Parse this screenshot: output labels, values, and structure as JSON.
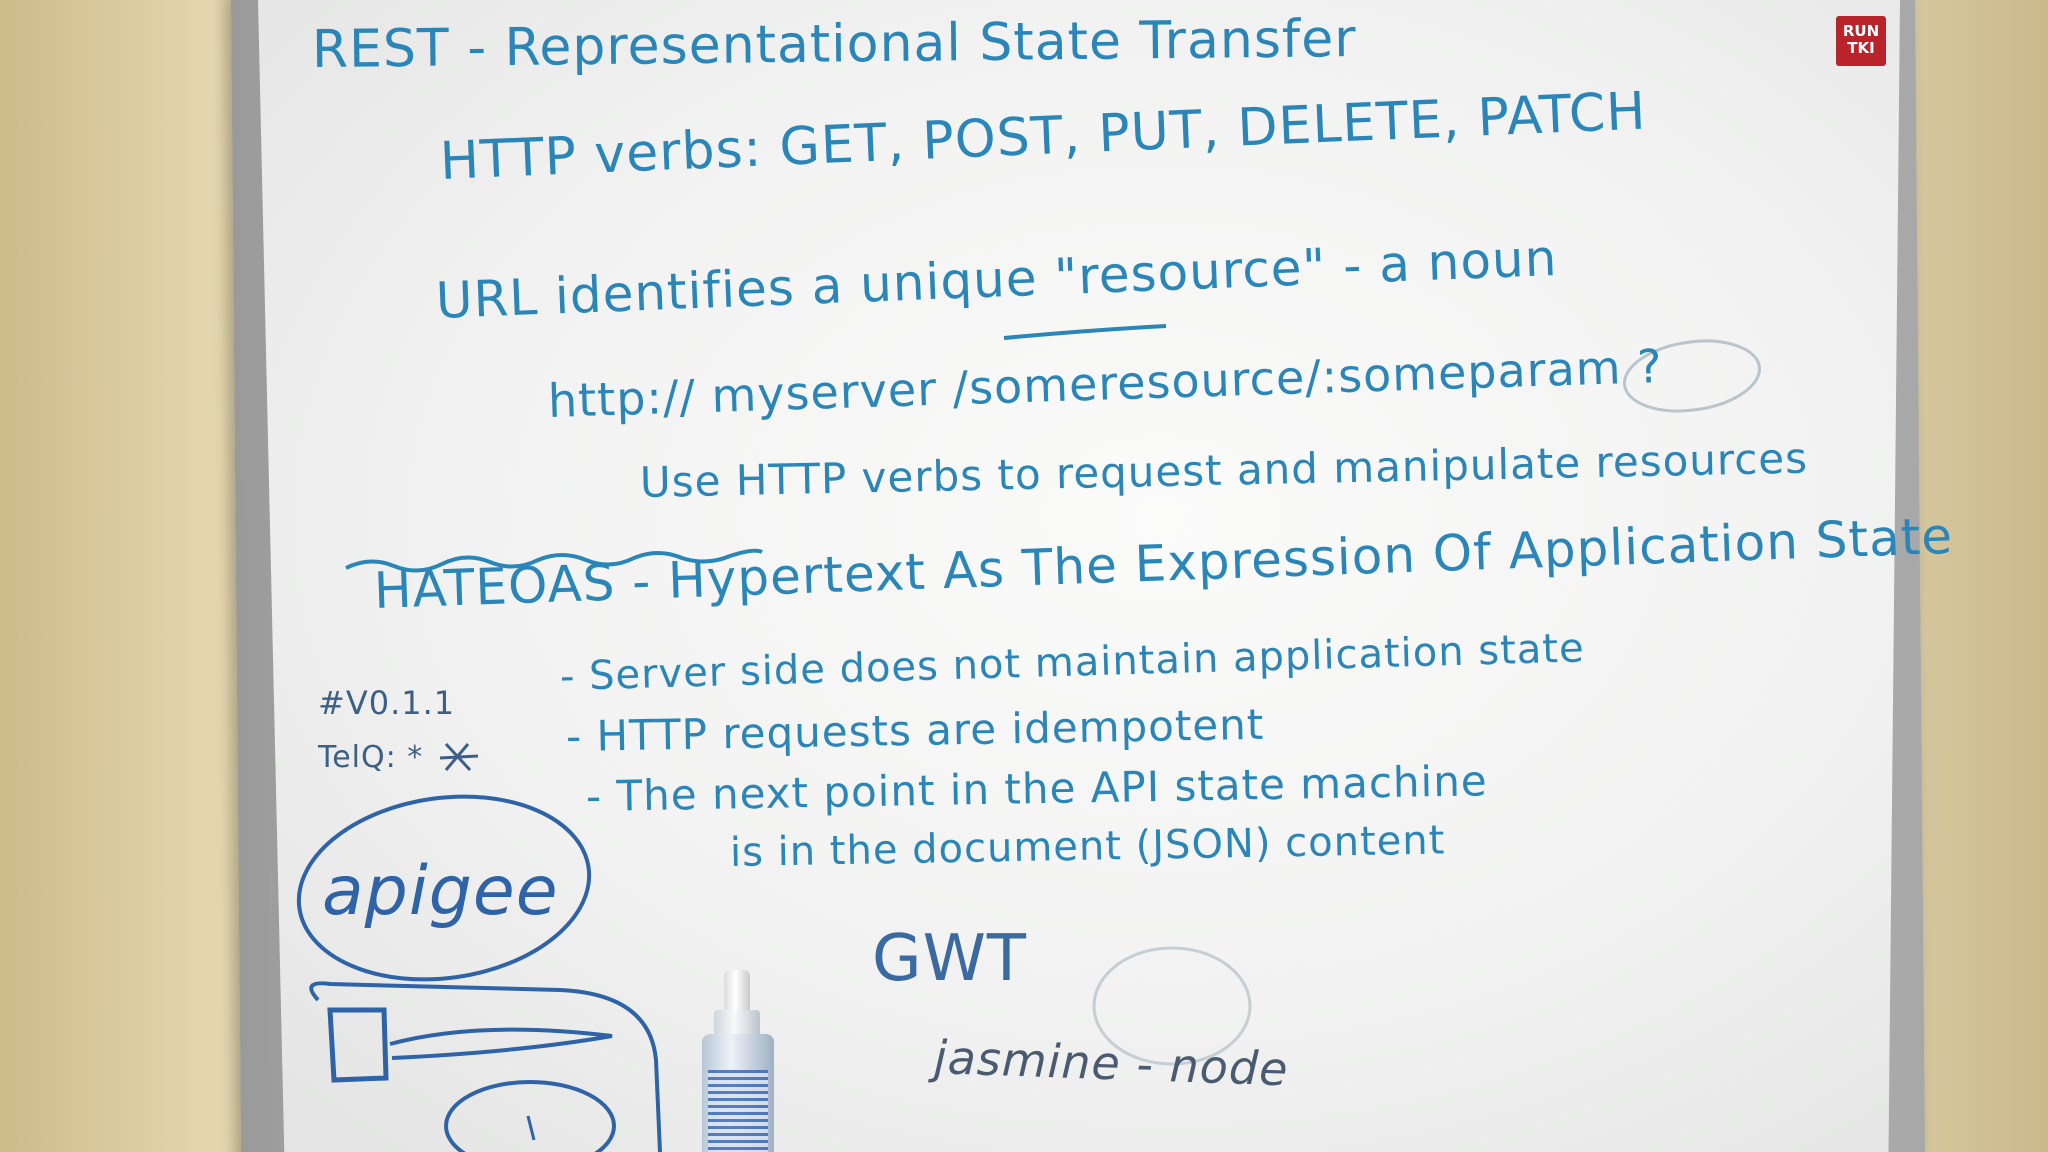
{
  "photo": {
    "subject": "whiteboard notes",
    "logo_text": "RUN TKI"
  },
  "whiteboard": {
    "title": "REST - Representational State Transfer",
    "http_verbs": "HTTP verbs: GET, POST, PUT, DELETE, PATCH",
    "url_line": "URL identifies a unique \"resource\" - a noun",
    "example_url": "http:// myserver /someresource/:someparam ?",
    "use_line": "Use HTTP verbs to request and manipulate resources",
    "hateoas": "HATEOAS - Hypertext As The Expression Of Application State",
    "version_tag": "#V0.1.1",
    "telq": "TelQ: *",
    "bullets": [
      "- Server side does not maintain application state",
      "- HTTP requests are idempotent",
      "- The next point in the API state machine",
      "is in the document (JSON) content"
    ],
    "apigee": "apigee",
    "gwt": "GWT",
    "jasmine": "jasmine - node"
  }
}
